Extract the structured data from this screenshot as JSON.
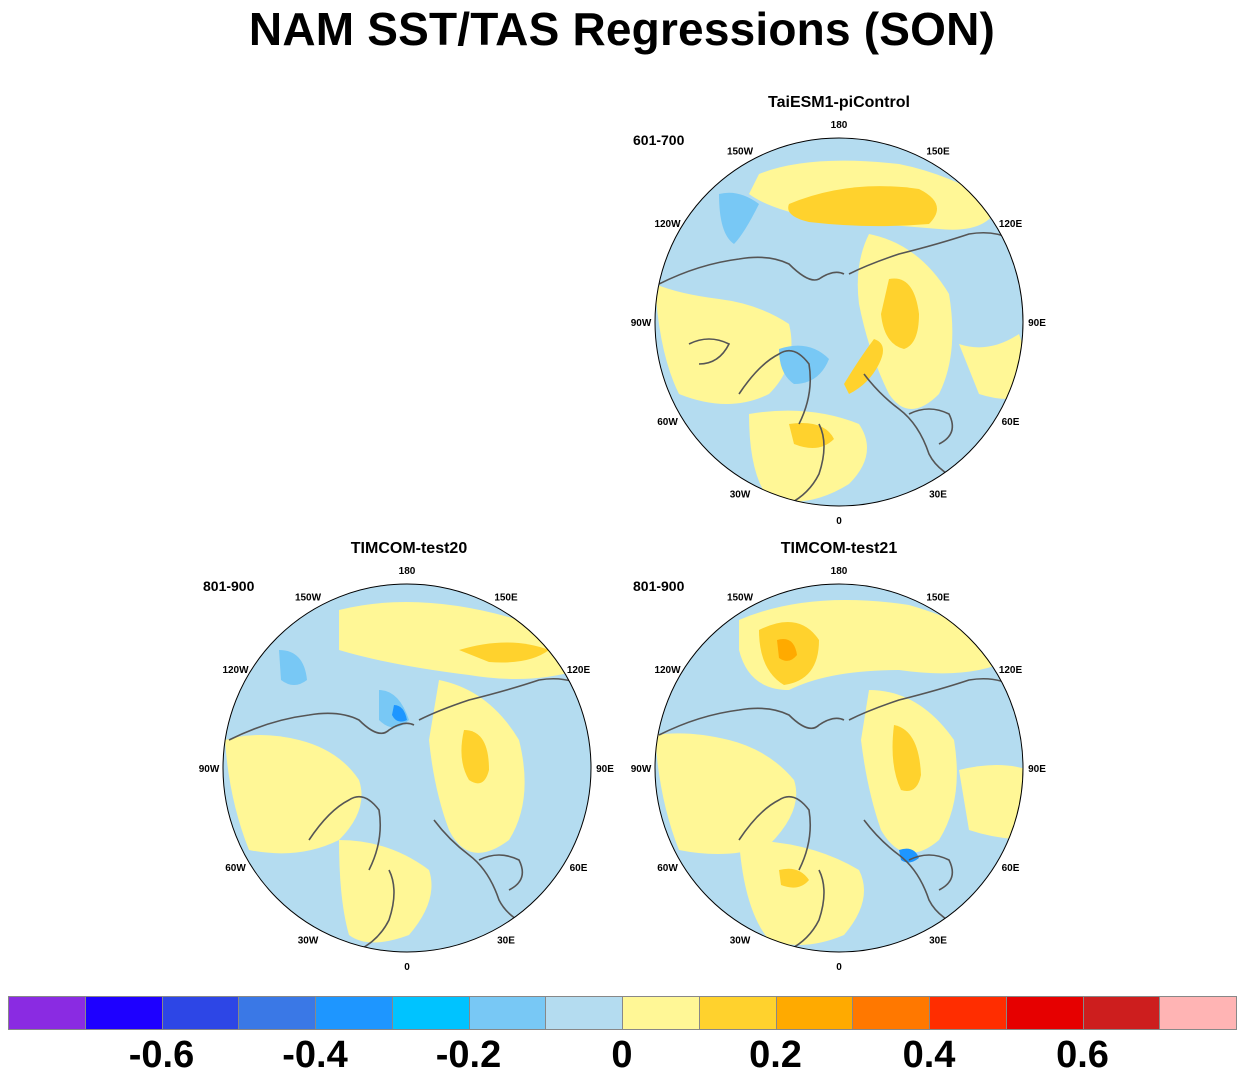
{
  "title": "NAM SST/TAS Regressions (SON)",
  "panels": [
    {
      "id": "taiesm",
      "title": "TaiESM1-piControl",
      "period": "601-700",
      "warm_max": 0.25,
      "warm_centers": [
        "N Pacific",
        "Eurasia 90E",
        "N Atlantic"
      ]
    },
    {
      "id": "test20",
      "title": "TIMCOM-test20",
      "period": "801-900",
      "warm_max": 0.2,
      "warm_centers": [
        "N Pacific 140E",
        "Eurasia 90E"
      ]
    },
    {
      "id": "test21",
      "title": "TIMCOM-test21",
      "period": "801-900",
      "warm_max": 0.3,
      "warm_centers": [
        "N Pacific 165W",
        "Eurasia 90E",
        "N Atlantic"
      ]
    }
  ],
  "longitude_labels": [
    "180",
    "150E",
    "120E",
    "90E",
    "60E",
    "30E",
    "0",
    "30W",
    "60W",
    "90W",
    "120W",
    "150W"
  ],
  "colorbar": {
    "colors": [
      "#8a2be2",
      "#1e00ff",
      "#2d46e6",
      "#3a78e6",
      "#1e96ff",
      "#00c3ff",
      "#78c8f5",
      "#b4dcf0",
      "#fff796",
      "#ffd22d",
      "#ffaa00",
      "#ff7800",
      "#ff2d00",
      "#e60000",
      "#cd1e1e",
      "#ffb4b4"
    ],
    "labels": [
      "-0.6",
      "-0.4",
      "-0.2",
      "0",
      "0.2",
      "0.4",
      "0.6"
    ]
  }
}
